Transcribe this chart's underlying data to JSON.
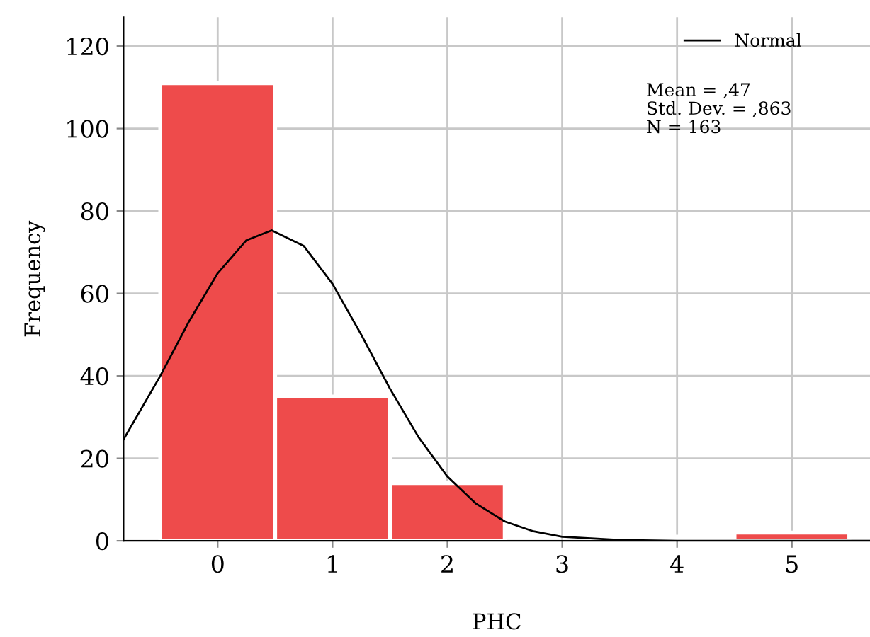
{
  "chart_data": {
    "type": "histogram",
    "xlabel": "PHC",
    "ylabel": "Frequency",
    "bins": [
      -0.5,
      0.5,
      1.5,
      2.5,
      3.5,
      4.5,
      5.5
    ],
    "values": [
      111,
      35,
      14,
      0,
      1,
      2
    ],
    "color": "#ee4b4b",
    "series": [
      {
        "name": "Normal",
        "type": "line",
        "color": "#000000",
        "x": [
          -0.82,
          -0.5,
          -0.25,
          0,
          0.25,
          0.47,
          0.75,
          1,
          1.25,
          1.5,
          1.75,
          2,
          2.25,
          2.5,
          2.75,
          3,
          3.5,
          4,
          5.68
        ],
        "values": [
          24.6,
          40,
          53.2,
          64.9,
          72.9,
          75.3,
          71.5,
          62.3,
          50,
          36.9,
          25.1,
          15.6,
          9,
          4.7,
          2.3,
          1,
          0.2,
          0,
          0
        ]
      }
    ],
    "xlim": [
      -0.82,
      5.68
    ],
    "xticks": [
      0,
      1,
      2,
      3,
      4,
      5
    ],
    "ylim": [
      0,
      127
    ],
    "yticks": [
      0,
      20,
      40,
      60,
      80,
      100,
      120
    ],
    "grid": true,
    "legend": "top right",
    "marker": "none",
    "line_style": "solid",
    "annotations": [
      "Mean = ,47",
      "Std. Dev. = ,863",
      "N = 163"
    ]
  }
}
